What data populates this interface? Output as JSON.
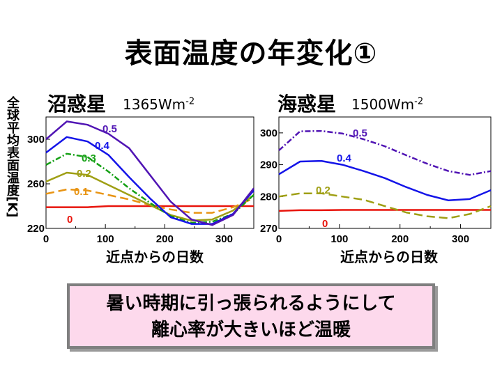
{
  "title": "表面温度の年変化①",
  "ylabel": "全球平均表面温度[K]",
  "note": {
    "line1": "暑い時期に引っ張られるようにして",
    "line2": "離心率が大きいほど温暖"
  },
  "chart_data": [
    {
      "type": "line",
      "title": "沼惑星",
      "subtitle_main": "1365Wm",
      "subtitle_exp": "-2",
      "xlabel": "近点からの日数",
      "ylabel": "全球平均表面温度[K]",
      "xlim": [
        0,
        350
      ],
      "ylim": [
        220,
        320
      ],
      "xticks": [
        0,
        100,
        200,
        300
      ],
      "yticks": [
        220,
        260,
        300
      ],
      "x": [
        0,
        35,
        70,
        105,
        140,
        175,
        210,
        245,
        280,
        315,
        350
      ],
      "series": [
        {
          "name": "0",
          "color": "#e8140c",
          "dash": "",
          "values": [
            239,
            239,
            239,
            240,
            240,
            240,
            240,
            240,
            240,
            240,
            240
          ]
        },
        {
          "name": "0.1",
          "color": "#e89414",
          "dash": "12,6",
          "values": [
            251,
            255,
            254,
            250,
            246,
            241,
            237,
            234,
            234,
            239,
            247
          ]
        },
        {
          "name": "0.2",
          "color": "#9f9f14",
          "dash": "",
          "values": [
            262,
            270,
            268,
            259,
            250,
            241,
            232,
            227,
            228,
            236,
            250
          ]
        },
        {
          "name": "0.3",
          "color": "#14a014",
          "dash": "8,3,2,3",
          "values": [
            277,
            287,
            284,
            271,
            256,
            243,
            231,
            225,
            226,
            233,
            250
          ]
        },
        {
          "name": "0.4",
          "color": "#1414e8",
          "dash": "",
          "values": [
            288,
            302,
            298,
            286,
            266,
            247,
            230,
            224,
            224,
            233,
            254
          ]
        },
        {
          "name": "0.5",
          "color": "#5014b4",
          "dash": "",
          "values": [
            300,
            316,
            313,
            305,
            292,
            268,
            244,
            228,
            223,
            232,
            256
          ]
        }
      ],
      "labels": [
        "0.5",
        "0.4",
        "0.3",
        "0.2",
        "0.1",
        "0"
      ]
    },
    {
      "type": "line",
      "title": "海惑星",
      "subtitle_main": "1500Wm",
      "subtitle_exp": "-2",
      "xlabel": "近点からの日数",
      "xlim": [
        0,
        350
      ],
      "ylim": [
        270,
        305
      ],
      "xticks": [
        0,
        100,
        200,
        300
      ],
      "yticks": [
        270,
        280,
        290,
        300
      ],
      "x": [
        0,
        35,
        70,
        105,
        140,
        175,
        210,
        245,
        280,
        315,
        350
      ],
      "series": [
        {
          "name": "0",
          "color": "#e8140c",
          "dash": "",
          "values": [
            275.5,
            275.7,
            275.7,
            275.8,
            275.8,
            275.8,
            275.8,
            275.8,
            275.8,
            275.8,
            275.8
          ]
        },
        {
          "name": "0.2",
          "color": "#9f9f14",
          "dash": "12,6",
          "values": [
            280,
            281,
            281,
            280,
            279,
            277,
            275,
            273.8,
            273.2,
            274.5,
            277
          ]
        },
        {
          "name": "0.4",
          "color": "#1414e8",
          "dash": "",
          "values": [
            287,
            291,
            291.2,
            290,
            288,
            285.8,
            283,
            280.5,
            278.8,
            279.2,
            282
          ]
        },
        {
          "name": "0.5",
          "color": "#5014b4",
          "dash": "8,3,2,3",
          "values": [
            294.5,
            300.5,
            300.6,
            299.8,
            298,
            295.8,
            293,
            290.3,
            288,
            286.8,
            288
          ]
        }
      ],
      "labels": [
        "0.5",
        "0.4",
        "0.2",
        "0"
      ]
    }
  ]
}
